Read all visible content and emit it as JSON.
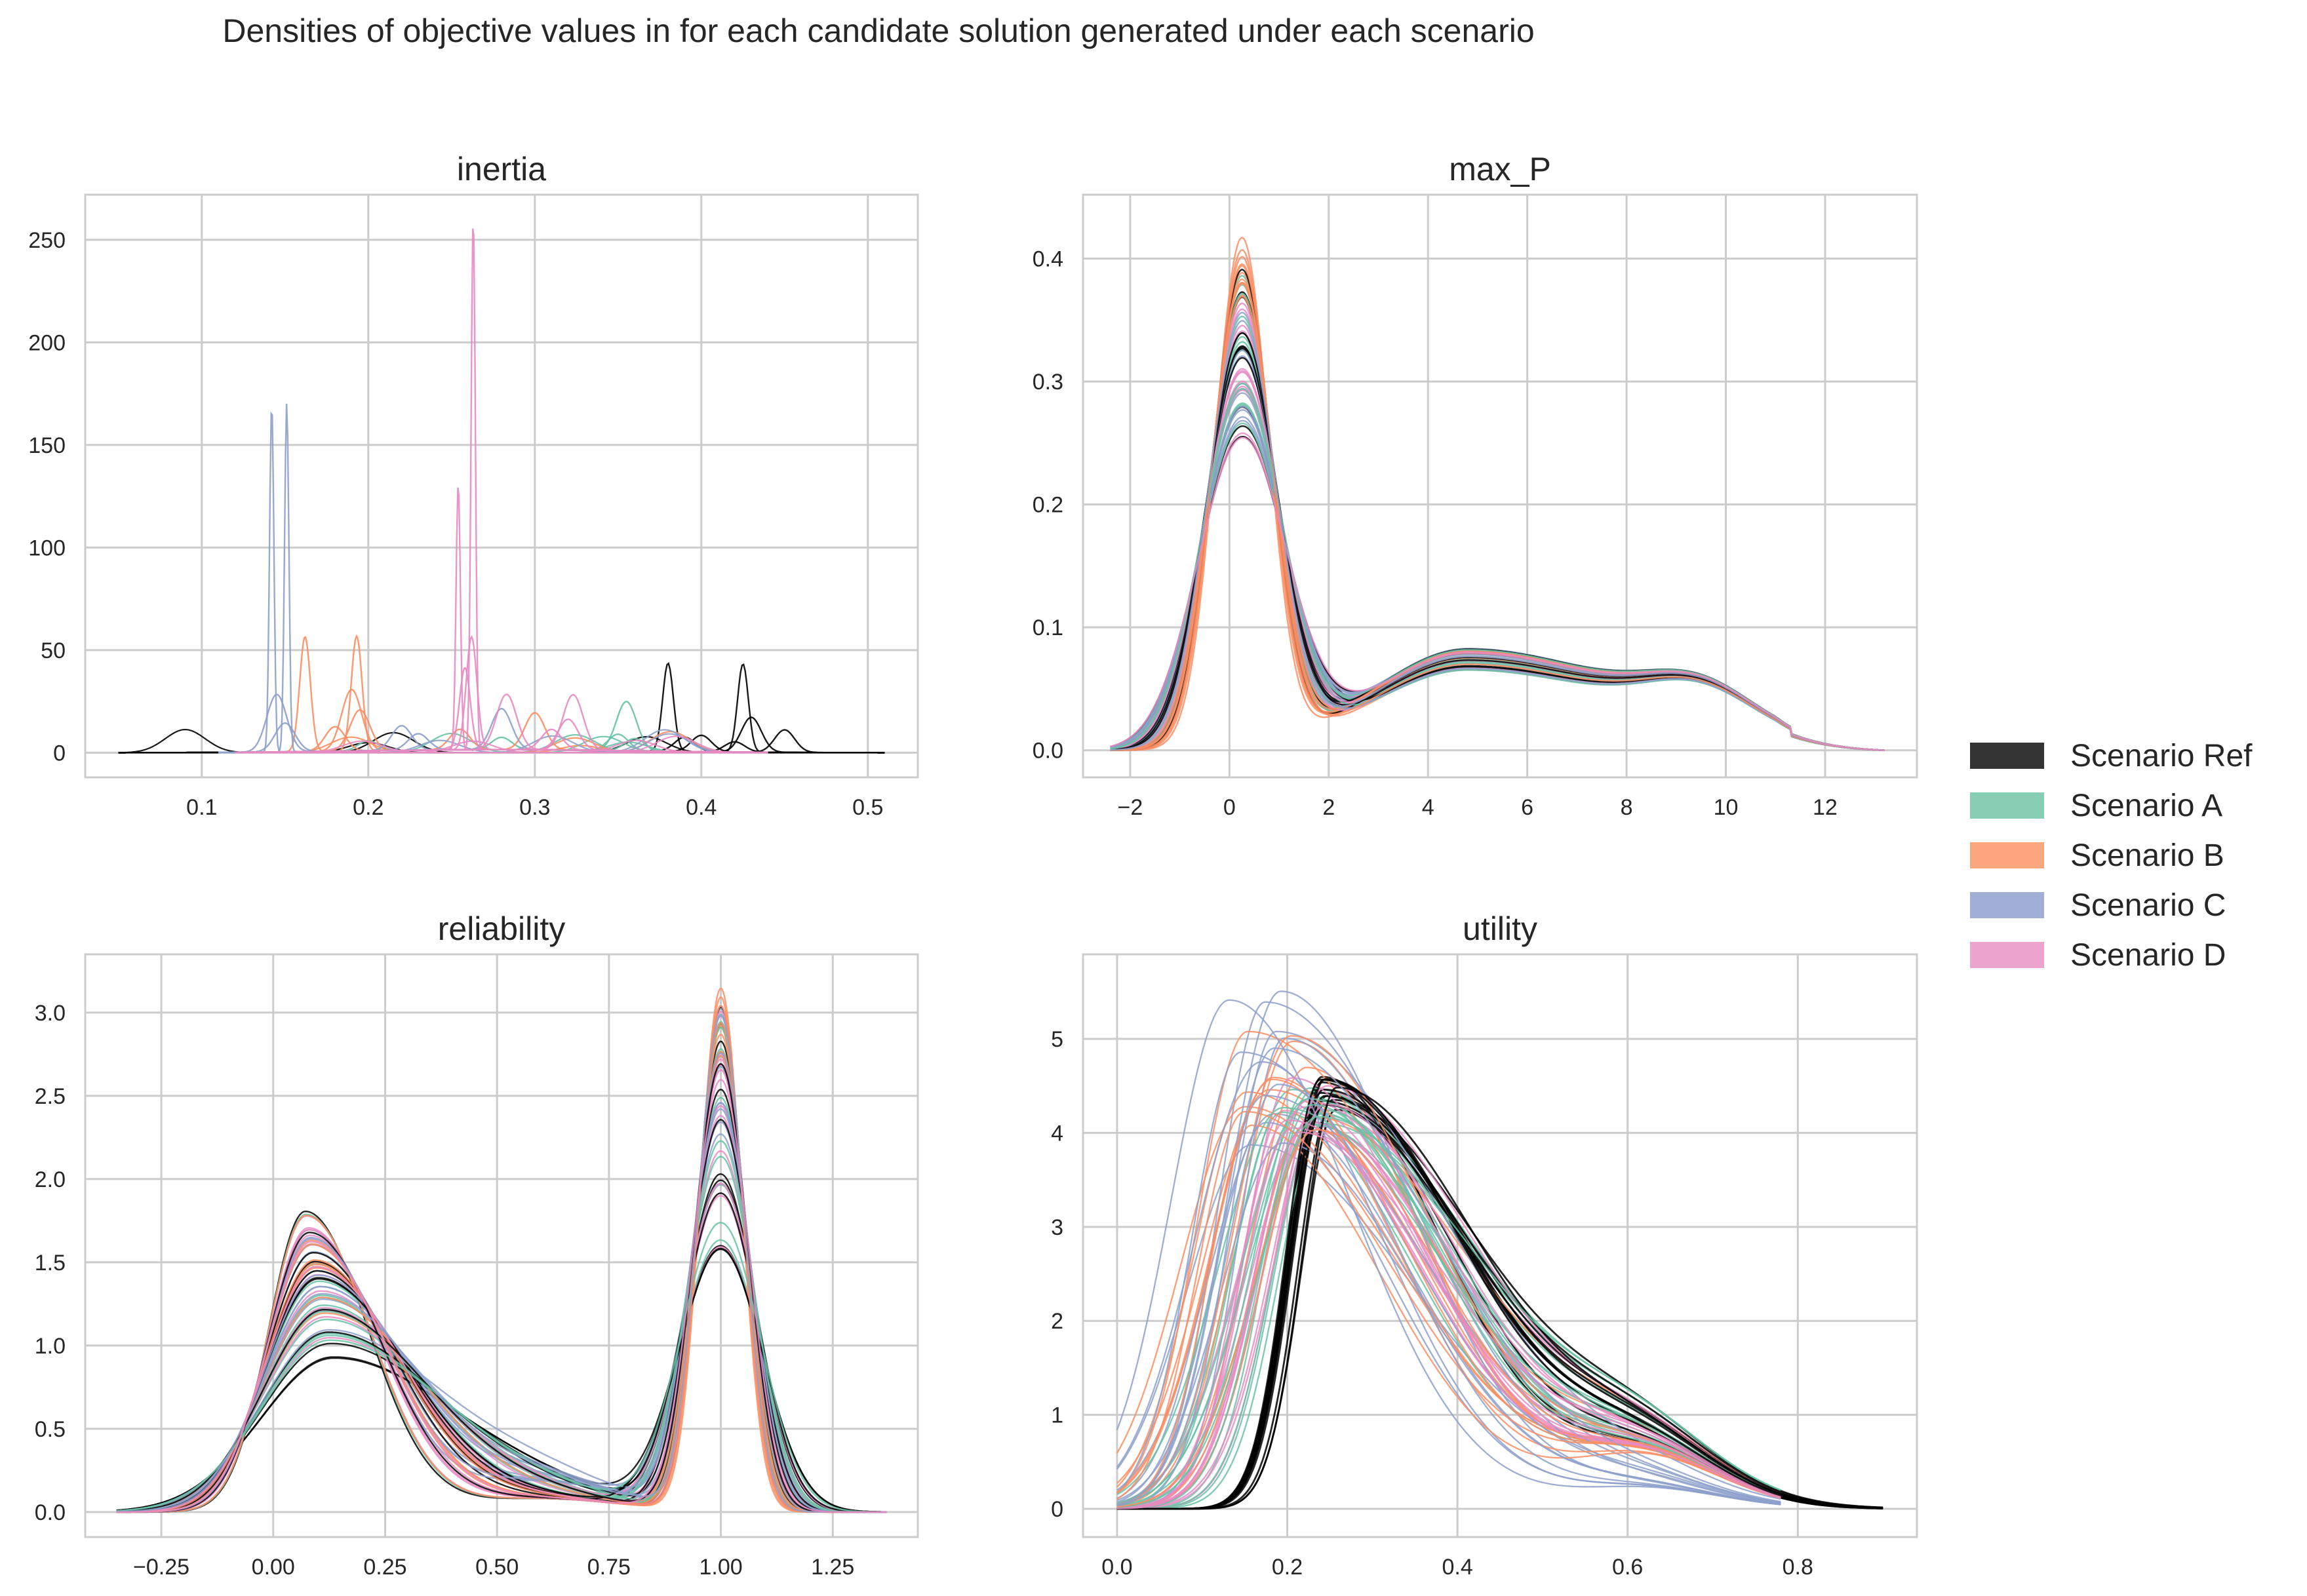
{
  "title": "Densities of objective values in for each candidate solution generated under each scenario",
  "legend": [
    {
      "name": "Scenario Ref",
      "color": "#333333"
    },
    {
      "name": "Scenario A",
      "color": "#86cdb4"
    },
    {
      "name": "Scenario B",
      "color": "#fba67c"
    },
    {
      "name": "Scenario C",
      "color": "#a1afd7"
    },
    {
      "name": "Scenario D",
      "color": "#eca4cf"
    }
  ],
  "line_colors": {
    "Ref": "#000000",
    "A": "#66c2a5",
    "B": "#fc8d62",
    "C": "#8da0cb",
    "D": "#e78ac3"
  },
  "chart_data": [
    {
      "type": "line",
      "title": "inertia",
      "xlabel": "",
      "ylabel": "",
      "xlim": [
        0.03,
        0.53
      ],
      "ylim": [
        -12,
        272
      ],
      "xticks": [
        "0.1",
        "0.2",
        "0.3",
        "0.4",
        "0.5"
      ],
      "yticks": [
        "0",
        "50",
        "100",
        "150",
        "200",
        "250"
      ],
      "grid": true,
      "series": [
        {
          "scenario": "Ref",
          "peaks": [
            [
              0.38,
              43
            ],
            [
              0.425,
              43
            ],
            [
              0.43,
              17
            ],
            [
              0.45,
              11
            ],
            [
              0.4,
              8
            ],
            [
              0.39,
              7
            ],
            [
              0.42,
              5
            ]
          ],
          "range": [
            0.05,
            0.51
          ]
        },
        {
          "scenario": "A",
          "peaks": [
            [
              0.355,
              24
            ],
            [
              0.35,
              8
            ],
            [
              0.36,
              6
            ],
            [
              0.2,
              5
            ],
            [
              0.28,
              6
            ]
          ],
          "range": [
            0.12,
            0.44
          ]
        },
        {
          "scenario": "B",
          "peaks": [
            [
              0.162,
              56
            ],
            [
              0.193,
              56
            ],
            [
              0.19,
              30
            ],
            [
              0.195,
              20
            ],
            [
              0.3,
              18
            ],
            [
              0.255,
              10
            ],
            [
              0.18,
              12
            ]
          ],
          "range": [
            0.12,
            0.44
          ]
        },
        {
          "scenario": "C",
          "peaks": [
            [
              0.142,
              170
            ],
            [
              0.151,
              170
            ],
            [
              0.145,
              28
            ],
            [
              0.15,
              14
            ],
            [
              0.22,
              12
            ],
            [
              0.28,
              20
            ],
            [
              0.23,
              8
            ]
          ],
          "range": [
            0.11,
            0.44
          ]
        },
        {
          "scenario": "D",
          "peaks": [
            [
              0.263,
              260
            ],
            [
              0.254,
              130
            ],
            [
              0.262,
              55
            ],
            [
              0.258,
              40
            ],
            [
              0.283,
              27
            ],
            [
              0.323,
              27
            ],
            [
              0.32,
              15
            ],
            [
              0.31,
              10
            ]
          ],
          "range": [
            0.12,
            0.44
          ]
        }
      ]
    },
    {
      "type": "line",
      "title": "max_P",
      "xlabel": "",
      "ylabel": "",
      "xlim": [
        -2.95,
        13.85
      ],
      "ylim": [
        -0.022,
        0.452
      ],
      "xticks": [
        "−2",
        "0",
        "2",
        "4",
        "6",
        "8",
        "10",
        "12"
      ],
      "yticks": [
        "0.0",
        "0.1",
        "0.2",
        "0.3",
        "0.4"
      ],
      "grid": true,
      "peak_range": [
        0.245,
        0.428
      ],
      "second_hump": {
        "location": 4.8,
        "height_range": [
          0.065,
          0.083
        ]
      }
    },
    {
      "type": "line",
      "title": "reliability",
      "xlabel": "",
      "ylabel": "",
      "xlim": [
        -0.42,
        1.44
      ],
      "ylim": [
        -0.15,
        3.35
      ],
      "xticks": [
        "−0.25",
        "0.00",
        "0.25",
        "0.50",
        "0.75",
        "1.00",
        "1.25"
      ],
      "yticks": [
        "0.0",
        "0.5",
        "1.0",
        "1.5",
        "2.0",
        "2.5",
        "3.0"
      ],
      "grid": true,
      "low_peak": {
        "location": 0.08,
        "height_range": [
          0.9,
          1.83
        ]
      },
      "high_peak": {
        "location": 1.0,
        "height_range": [
          1.55,
          3.17
        ]
      }
    },
    {
      "type": "line",
      "title": "utility",
      "xlabel": "",
      "ylabel": "",
      "xlim": [
        -0.04,
        0.94
      ],
      "ylim": [
        -0.3,
        5.9
      ],
      "xticks": [
        "0.0",
        "0.2",
        "0.4",
        "0.6",
        "0.8"
      ],
      "yticks": [
        "0",
        "1",
        "2",
        "3",
        "4",
        "5"
      ],
      "grid": true,
      "peak_height_range": [
        3.8,
        5.63
      ],
      "peak_location_range": [
        0.12,
        0.26
      ]
    }
  ]
}
